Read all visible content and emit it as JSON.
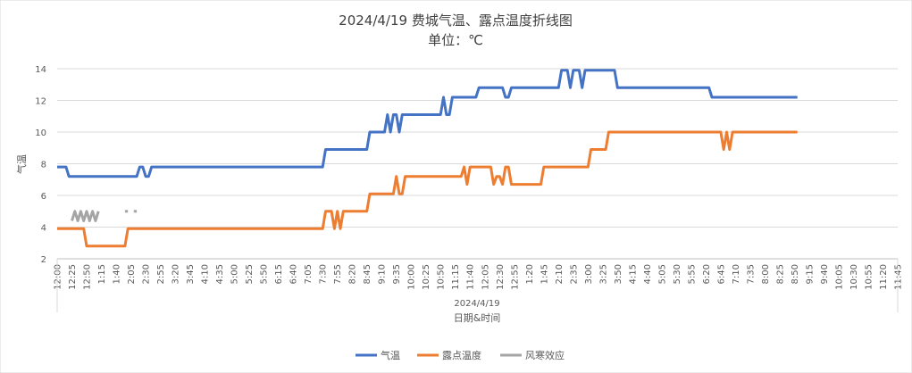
{
  "chart_data": {
    "type": "line",
    "title": "2024/4/19 费城气温、露点温度折线图",
    "subtitle": "单位：℃",
    "xlabel": "日期&时间",
    "x_group_label": "2024/4/19",
    "ylabel": "气温",
    "ylim": [
      2,
      14
    ],
    "yticks": [
      2,
      4,
      6,
      8,
      10,
      12,
      14
    ],
    "grid": true,
    "legend_position": "bottom",
    "x": [
      "12:00",
      "12:05",
      "12:10",
      "12:15",
      "12:20",
      "12:25",
      "12:30",
      "12:35",
      "12:40",
      "12:45",
      "12:50",
      "12:55",
      "1:00",
      "1:05",
      "1:10",
      "1:15",
      "1:20",
      "1:25",
      "1:30",
      "1:35",
      "1:40",
      "1:45",
      "1:50",
      "1:55",
      "2:00",
      "2:05",
      "2:10",
      "2:15",
      "2:20",
      "2:25",
      "2:30",
      "2:35",
      "2:40",
      "2:45",
      "2:50",
      "2:55",
      "3:00",
      "3:05",
      "3:10",
      "3:15",
      "3:20",
      "3:25",
      "3:30",
      "3:35",
      "3:40",
      "3:45",
      "3:50",
      "3:55",
      "4:00",
      "4:05",
      "4:10",
      "4:15",
      "4:20",
      "4:25",
      "4:30",
      "4:35",
      "4:40",
      "4:45",
      "4:50",
      "4:55",
      "5:00",
      "5:05",
      "5:10",
      "5:15",
      "5:20",
      "5:25",
      "5:30",
      "5:35",
      "5:40",
      "5:45",
      "5:50",
      "5:55",
      "6:00",
      "6:05",
      "6:10",
      "6:15",
      "6:20",
      "6:25",
      "6:30",
      "6:35",
      "6:40",
      "6:45",
      "6:50",
      "6:55",
      "7:00",
      "7:05",
      "7:10",
      "7:15",
      "7:20",
      "7:25",
      "7:30",
      "7:35",
      "7:40",
      "7:45",
      "7:50",
      "7:55",
      "8:00",
      "8:05",
      "8:10",
      "8:15",
      "8:20",
      "8:25",
      "8:30",
      "8:35",
      "8:40",
      "8:45",
      "8:50",
      "8:55",
      "9:00",
      "9:05",
      "9:10",
      "9:15",
      "9:20",
      "9:25",
      "9:30",
      "9:35",
      "9:40",
      "9:45",
      "9:50",
      "9:55",
      "10:00",
      "10:05",
      "10:10",
      "10:15",
      "10:20",
      "10:25",
      "10:30",
      "10:35",
      "10:40",
      "10:45",
      "10:50",
      "10:55",
      "11:00",
      "11:05",
      "11:10",
      "11:15",
      "11:20",
      "11:25",
      "11:30",
      "11:35",
      "11:40",
      "11:45",
      "11:50",
      "11:55",
      "12:00",
      "12:05",
      "12:10",
      "12:15",
      "12:20",
      "12:25",
      "12:30",
      "12:35",
      "12:40",
      "12:45",
      "12:50",
      "12:55",
      "1:00",
      "1:05",
      "1:10",
      "1:15",
      "1:20",
      "1:25",
      "1:30",
      "1:35",
      "1:40",
      "1:45",
      "1:50",
      "1:55",
      "2:00",
      "2:05",
      "2:10",
      "2:15",
      "2:20",
      "2:25",
      "2:30",
      "2:35",
      "2:40",
      "2:45",
      "2:50",
      "2:55",
      "3:00",
      "3:05",
      "3:10",
      "3:15",
      "3:20",
      "3:25",
      "3:30",
      "3:35",
      "3:40",
      "3:45",
      "3:50",
      "3:55",
      "4:00",
      "4:05",
      "4:10",
      "4:15",
      "4:20",
      "4:25",
      "4:30",
      "4:35",
      "4:40",
      "4:45",
      "4:50",
      "4:55",
      "5:00",
      "5:05",
      "5:10",
      "5:15",
      "5:20",
      "5:25",
      "5:30",
      "5:35",
      "5:40",
      "5:45",
      "5:50",
      "5:55",
      "6:00",
      "6:05",
      "6:10",
      "6:15",
      "6:20",
      "6:25",
      "6:30",
      "6:35",
      "6:40",
      "6:45",
      "6:50",
      "6:55",
      "7:00",
      "7:05",
      "7:10",
      "7:15",
      "7:20",
      "7:25",
      "7:30",
      "7:35",
      "7:40",
      "7:45",
      "7:50",
      "7:55",
      "8:00",
      "8:05",
      "8:10",
      "8:15",
      "8:20",
      "8:25",
      "8:30",
      "8:35",
      "8:40",
      "8:45",
      "8:50",
      "8:55",
      "9:00",
      "9:05",
      "9:10",
      "9:15",
      "9:20",
      "9:25",
      "9:30",
      "9:35",
      "9:40",
      "9:45",
      "9:50",
      "9:55",
      "10:00",
      "10:05",
      "10:10",
      "10:15",
      "10:20",
      "10:25",
      "10:30",
      "10:35",
      "10:40",
      "10:45",
      "10:50",
      "10:55",
      "11:00",
      "11:05",
      "11:10",
      "11:15",
      "11:20",
      "11:25",
      "11:30",
      "11:35",
      "11:40",
      "11:45"
    ],
    "tick_labels": [
      "12:00",
      "12:25",
      "12:50",
      "1:15",
      "1:40",
      "2:05",
      "2:30",
      "2:55",
      "3:20",
      "3:45",
      "4:10",
      "4:35",
      "5:00",
      "5:25",
      "5:50",
      "6:15",
      "6:40",
      "7:05",
      "7:30",
      "7:55",
      "8:20",
      "8:45",
      "9:10",
      "9:35",
      "10:00",
      "10:25",
      "10:50",
      "11:15",
      "11:40",
      "12:05",
      "12:30",
      "12:55",
      "1:20",
      "1:45",
      "2:10",
      "2:35",
      "3:00",
      "3:25",
      "3:50",
      "4:15",
      "4:40",
      "5:05",
      "5:30",
      "5:55",
      "6:20",
      "6:45",
      "7:10",
      "7:35",
      "8:00",
      "8:25",
      "8:50",
      "9:15",
      "9:40",
      "10:05",
      "10:30",
      "10:55",
      "11:20",
      "11:45"
    ],
    "series": [
      {
        "name": "气温",
        "color": "#4472C4",
        "segments": [
          [
            [
              0,
              7.8
            ],
            [
              3,
              7.8
            ],
            [
              4,
              7.2
            ],
            [
              27,
              7.2
            ],
            [
              28,
              7.8
            ],
            [
              29,
              7.8
            ],
            [
              30,
              7.2
            ],
            [
              31,
              7.2
            ],
            [
              32,
              7.8
            ],
            [
              90,
              7.8
            ],
            [
              91,
              8.9
            ],
            [
              105,
              8.9
            ],
            [
              106,
              10.0
            ],
            [
              111,
              10.0
            ],
            [
              112,
              11.1
            ],
            [
              113,
              10.0
            ],
            [
              114,
              11.1
            ],
            [
              115,
              11.1
            ],
            [
              116,
              10.0
            ],
            [
              117,
              11.1
            ],
            [
              130,
              11.1
            ],
            [
              131,
              12.2
            ],
            [
              132,
              11.1
            ],
            [
              133,
              11.1
            ],
            [
              134,
              12.2
            ],
            [
              142,
              12.2
            ],
            [
              143,
              12.8
            ],
            [
              151,
              12.8
            ],
            [
              152,
              12.2
            ],
            [
              153,
              12.2
            ],
            [
              154,
              12.8
            ],
            [
              170,
              12.8
            ],
            [
              171,
              13.9
            ],
            [
              173,
              13.9
            ],
            [
              174,
              12.8
            ],
            [
              175,
              13.9
            ],
            [
              177,
              13.9
            ],
            [
              178,
              12.8
            ],
            [
              179,
              13.9
            ],
            [
              189,
              13.9
            ],
            [
              190,
              12.8
            ],
            [
              221,
              12.8
            ],
            [
              222,
              12.2
            ],
            [
              251,
              12.2
            ]
          ]
        ]
      },
      {
        "name": "露点温度",
        "color": "#ED7D31",
        "segments": [
          [
            [
              0,
              3.9
            ],
            [
              9,
              3.9
            ],
            [
              10,
              2.8
            ],
            [
              23,
              2.8
            ],
            [
              24,
              3.9
            ],
            [
              90,
              3.9
            ],
            [
              91,
              5.0
            ],
            [
              93,
              5.0
            ],
            [
              94,
              3.9
            ],
            [
              95,
              5.0
            ],
            [
              96,
              3.9
            ],
            [
              97,
              5.0
            ],
            [
              105,
              5.0
            ],
            [
              106,
              6.1
            ],
            [
              114,
              6.1
            ],
            [
              115,
              7.2
            ],
            [
              116,
              6.1
            ],
            [
              117,
              6.1
            ],
            [
              118,
              7.2
            ],
            [
              137,
              7.2
            ],
            [
              138,
              7.8
            ],
            [
              139,
              6.7
            ],
            [
              140,
              7.8
            ],
            [
              147,
              7.8
            ],
            [
              148,
              6.7
            ],
            [
              149,
              7.2
            ],
            [
              150,
              7.2
            ],
            [
              151,
              6.7
            ],
            [
              152,
              7.8
            ],
            [
              153,
              7.8
            ],
            [
              154,
              6.7
            ],
            [
              164,
              6.7
            ],
            [
              165,
              7.8
            ],
            [
              180,
              7.8
            ],
            [
              181,
              8.9
            ],
            [
              186,
              8.9
            ],
            [
              187,
              10.0
            ],
            [
              225,
              10.0
            ],
            [
              226,
              8.9
            ],
            [
              227,
              10.0
            ],
            [
              228,
              8.9
            ],
            [
              229,
              10.0
            ],
            [
              251,
              10.0
            ]
          ]
        ]
      },
      {
        "name": "风寒效应",
        "color": "#A5A5A5",
        "segments": [
          [
            [
              5,
              4.4
            ],
            [
              6,
              5.0
            ],
            [
              7,
              4.4
            ],
            [
              8,
              5.0
            ],
            [
              9,
              4.4
            ],
            [
              10,
              5.0
            ],
            [
              11,
              4.4
            ],
            [
              12,
              5.0
            ],
            [
              13,
              4.4
            ],
            [
              14,
              5.0
            ]
          ],
          [
            [
              23,
              5.0
            ],
            [
              24,
              5.0
            ]
          ],
          [
            [
              26,
              5.0
            ],
            [
              27,
              5.0
            ]
          ]
        ]
      }
    ]
  }
}
